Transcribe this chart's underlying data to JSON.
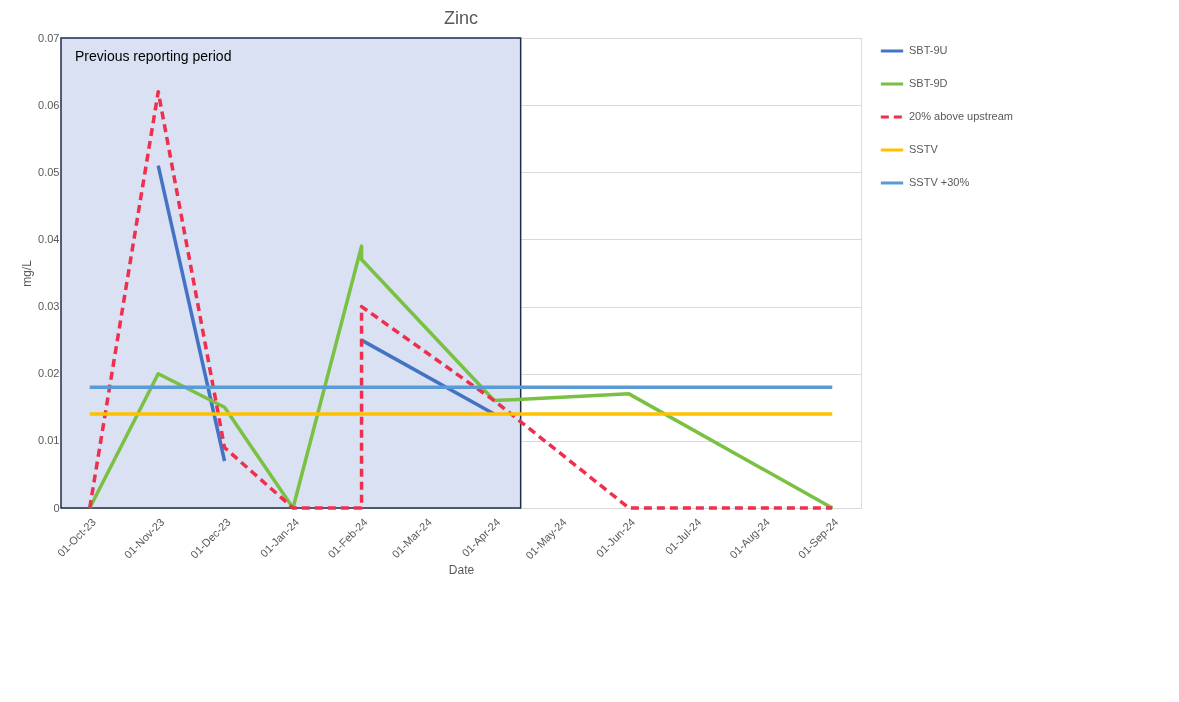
{
  "chart_data": {
    "type": "line",
    "title": "Zinc",
    "xlabel": "Date",
    "ylabel": "mg/L",
    "xlim": [
      "2023-09-18",
      "2024-09-14"
    ],
    "ylim": [
      0,
      0.07
    ],
    "yticks": [
      0,
      0.01,
      0.02,
      0.03,
      0.04,
      0.05,
      0.06,
      0.07
    ],
    "xticks": [
      {
        "value": "2023-10-01",
        "label": "01-Oct-23"
      },
      {
        "value": "2023-11-01",
        "label": "01-Nov-23"
      },
      {
        "value": "2023-12-01",
        "label": "01-Dec-23"
      },
      {
        "value": "2024-01-01",
        "label": "01-Jan-24"
      },
      {
        "value": "2024-02-01",
        "label": "01-Feb-24"
      },
      {
        "value": "2024-03-01",
        "label": "01-Mar-24"
      },
      {
        "value": "2024-04-01",
        "label": "01-Apr-24"
      },
      {
        "value": "2024-05-01",
        "label": "01-May-24"
      },
      {
        "value": "2024-06-01",
        "label": "01-Jun-24"
      },
      {
        "value": "2024-07-01",
        "label": "01-Jul-24"
      },
      {
        "value": "2024-08-01",
        "label": "01-Aug-24"
      },
      {
        "value": "2024-09-01",
        "label": "01-Sep-24"
      }
    ],
    "grid": "y",
    "legend": "top right",
    "bands": [
      {
        "axis": "x",
        "from": "2023-09-18",
        "to": "2024-04-13",
        "label": "Previous reporting period",
        "color": "#d9e1f2"
      }
    ],
    "series": [
      {
        "name": "SBT-9U",
        "color": "#4472c4",
        "x": [
          "2023-11-01",
          "2023-12-01",
          "2024-01-01",
          "2024-02-01",
          "2024-04-01"
        ],
        "values": [
          0.051,
          0.007,
          null,
          0.025,
          0.014
        ]
      },
      {
        "name": "SBT-9D",
        "color": "#7ac143",
        "x": [
          "2023-10-01",
          "2023-11-01",
          "2023-12-01",
          "2024-01-01",
          "2024-02-01",
          "2024-02-01",
          "2024-04-01",
          "2024-06-01",
          "2024-09-01"
        ],
        "values": [
          0,
          0.02,
          0.015,
          0,
          0.039,
          0.037,
          0.016,
          0.017,
          0
        ]
      },
      {
        "name": "20% above upstream",
        "color": "#ee2f4d",
        "line_style": "dashed",
        "x": [
          "2023-10-01",
          "2023-11-01",
          "2023-12-01",
          "2024-01-01",
          "2024-02-01",
          "2024-02-01",
          "2024-04-01",
          "2024-06-01",
          "2024-09-01"
        ],
        "values": [
          0,
          0.062,
          0.009,
          0,
          0,
          0.03,
          0.016,
          0,
          0
        ]
      },
      {
        "name": "SSTV",
        "color": "#ffc000",
        "x": [
          "2023-10-01",
          "2024-09-01"
        ],
        "values": [
          0.014,
          0.014
        ]
      },
      {
        "name": "SSTV +30%",
        "color": "#5b9bd5",
        "x": [
          "2023-10-01",
          "2024-09-01"
        ],
        "values": [
          0.018,
          0.018
        ]
      }
    ]
  }
}
